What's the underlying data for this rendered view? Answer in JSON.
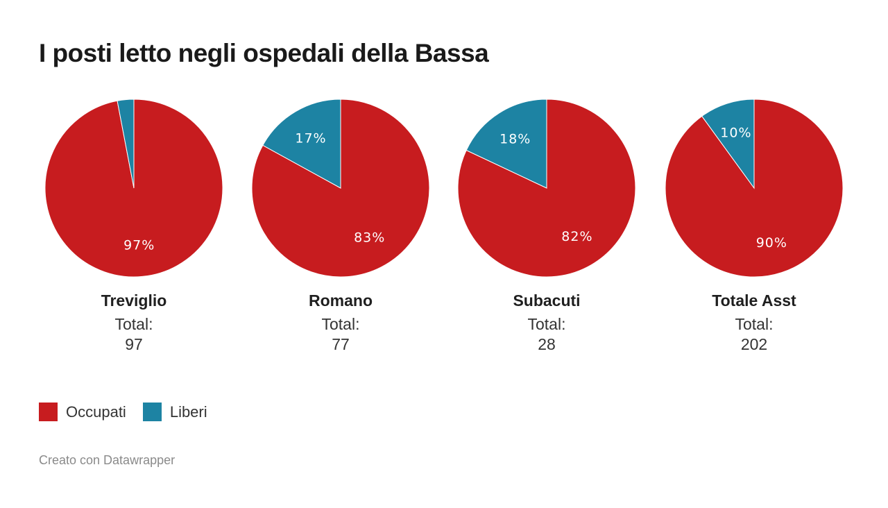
{
  "header": {
    "title": "I posti letto negli ospedali della Bassa"
  },
  "colors": {
    "occupati": "#c71c1f",
    "liberi": "#1d83a3",
    "slice_border": "#ffffff"
  },
  "chart_data": {
    "type": "pie",
    "categories": [
      "Occupati",
      "Liberi"
    ],
    "pies": [
      {
        "name": "Treviglio",
        "total_label": "Total:",
        "total": "97",
        "slices": [
          {
            "category": "Occupati",
            "value": 97,
            "label": "97%"
          },
          {
            "category": "Liberi",
            "value": 3,
            "label": ""
          }
        ]
      },
      {
        "name": "Romano",
        "total_label": "Total:",
        "total": "77",
        "slices": [
          {
            "category": "Occupati",
            "value": 83,
            "label": "83%"
          },
          {
            "category": "Liberi",
            "value": 17,
            "label": "17%"
          }
        ]
      },
      {
        "name": "Subacuti",
        "total_label": "Total:",
        "total": "28",
        "slices": [
          {
            "category": "Occupati",
            "value": 82,
            "label": "82%"
          },
          {
            "category": "Liberi",
            "value": 18,
            "label": "18%"
          }
        ]
      },
      {
        "name": "Totale Asst",
        "total_label": "Total:",
        "total": "202",
        "slices": [
          {
            "category": "Occupati",
            "value": 90,
            "label": "90%"
          },
          {
            "category": "Liberi",
            "value": 10,
            "label": "10%"
          }
        ]
      }
    ],
    "legend": [
      {
        "name": "Occupati"
      },
      {
        "name": "Liberi"
      }
    ],
    "legend_position": "bottom-left"
  },
  "footer": {
    "credit": "Creato con Datawrapper"
  }
}
